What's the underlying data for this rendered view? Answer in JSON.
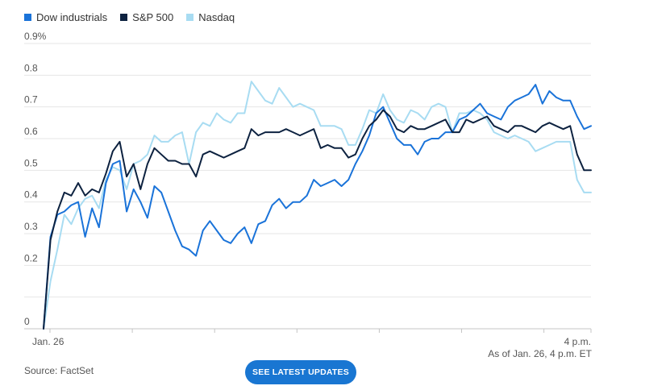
{
  "legend": [
    {
      "label": "Dow industrials",
      "color": "#1a73d9"
    },
    {
      "label": "S&P 500",
      "color": "#0d2240"
    },
    {
      "label": "Nasdaq",
      "color": "#a8dcf2"
    }
  ],
  "as_of": "As of Jan. 26, 4 p.m. ET",
  "source": "Source: FactSet",
  "cta_label": "SEE LATEST UPDATES",
  "chart_data": {
    "type": "line",
    "ylim": [
      0,
      0.9
    ],
    "y_ticks": [
      {
        "value": 0.9,
        "label": "0.9%"
      },
      {
        "value": 0.8,
        "label": "0.8"
      },
      {
        "value": 0.7,
        "label": "0.7"
      },
      {
        "value": 0.6,
        "label": "0.6"
      },
      {
        "value": 0.5,
        "label": "0.5"
      },
      {
        "value": 0.4,
        "label": "0.4"
      },
      {
        "value": 0.3,
        "label": "0.3"
      },
      {
        "value": 0.2,
        "label": "0.2"
      },
      {
        "value": 0.1,
        "label": ""
      },
      {
        "value": 0,
        "label": "0"
      }
    ],
    "x_tick_labels": [
      {
        "label": "Jan. 26",
        "position": "start"
      },
      {
        "label": "4 p.m.",
        "position": "end"
      }
    ],
    "series": [
      {
        "name": "Dow industrials",
        "color": "#1a73d9",
        "values": [
          0,
          0.29,
          0.36,
          0.37,
          0.39,
          0.4,
          0.29,
          0.38,
          0.32,
          0.46,
          0.52,
          0.53,
          0.37,
          0.44,
          0.4,
          0.35,
          0.45,
          0.43,
          0.37,
          0.31,
          0.26,
          0.25,
          0.23,
          0.31,
          0.34,
          0.31,
          0.28,
          0.27,
          0.3,
          0.32,
          0.27,
          0.33,
          0.34,
          0.39,
          0.41,
          0.38,
          0.4,
          0.4,
          0.42,
          0.47,
          0.45,
          0.46,
          0.47,
          0.45,
          0.47,
          0.52,
          0.56,
          0.61,
          0.68,
          0.7,
          0.65,
          0.6,
          0.58,
          0.58,
          0.55,
          0.59,
          0.6,
          0.6,
          0.62,
          0.62,
          0.66,
          0.67,
          0.69,
          0.71,
          0.68,
          0.67,
          0.66,
          0.7,
          0.72,
          0.73,
          0.74,
          0.77,
          0.71,
          0.75,
          0.73,
          0.72,
          0.72,
          0.67,
          0.63,
          0.64
        ]
      },
      {
        "name": "S&P 500",
        "color": "#0d2240",
        "values": [
          0,
          0.28,
          0.37,
          0.43,
          0.42,
          0.46,
          0.42,
          0.44,
          0.43,
          0.49,
          0.56,
          0.59,
          0.48,
          0.52,
          0.44,
          0.52,
          0.57,
          0.55,
          0.53,
          0.53,
          0.52,
          0.52,
          0.48,
          0.55,
          0.56,
          0.55,
          0.54,
          0.55,
          0.56,
          0.57,
          0.63,
          0.61,
          0.62,
          0.62,
          0.62,
          0.63,
          0.62,
          0.61,
          0.62,
          0.63,
          0.57,
          0.58,
          0.57,
          0.57,
          0.54,
          0.55,
          0.6,
          0.64,
          0.66,
          0.69,
          0.67,
          0.63,
          0.62,
          0.64,
          0.63,
          0.63,
          0.64,
          0.65,
          0.66,
          0.62,
          0.62,
          0.66,
          0.65,
          0.66,
          0.67,
          0.64,
          0.63,
          0.62,
          0.64,
          0.64,
          0.63,
          0.62,
          0.64,
          0.65,
          0.64,
          0.63,
          0.64,
          0.55,
          0.5,
          0.5
        ]
      },
      {
        "name": "Nasdaq",
        "color": "#a8dcf2",
        "values": [
          0,
          0.15,
          0.25,
          0.36,
          0.33,
          0.38,
          0.41,
          0.42,
          0.38,
          0.47,
          0.51,
          0.5,
          0.44,
          0.52,
          0.53,
          0.55,
          0.61,
          0.59,
          0.59,
          0.61,
          0.62,
          0.52,
          0.62,
          0.65,
          0.64,
          0.68,
          0.66,
          0.65,
          0.68,
          0.68,
          0.78,
          0.75,
          0.72,
          0.71,
          0.76,
          0.73,
          0.7,
          0.71,
          0.7,
          0.69,
          0.64,
          0.64,
          0.64,
          0.63,
          0.58,
          0.58,
          0.63,
          0.69,
          0.68,
          0.74,
          0.69,
          0.66,
          0.65,
          0.69,
          0.68,
          0.66,
          0.7,
          0.71,
          0.7,
          0.62,
          0.68,
          0.68,
          0.69,
          0.68,
          0.66,
          0.62,
          0.61,
          0.6,
          0.61,
          0.6,
          0.59,
          0.56,
          0.57,
          0.58,
          0.59,
          0.59,
          0.59,
          0.47,
          0.43,
          0.43
        ]
      }
    ]
  }
}
